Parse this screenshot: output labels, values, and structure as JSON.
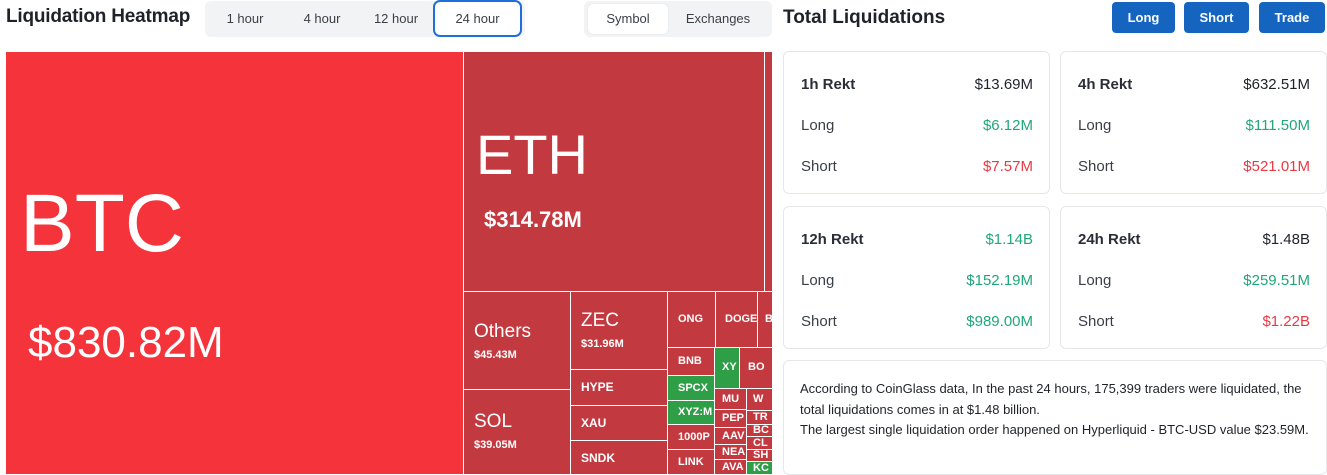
{
  "heatmap": {
    "title": "Liquidation Heatmap",
    "timeframes": [
      "1 hour",
      "4 hour",
      "12 hour",
      "24 hour"
    ],
    "active_timeframe": "24 hour",
    "views": [
      "Symbol",
      "Exchanges"
    ],
    "active_view": "Symbol",
    "cells": {
      "btc": {
        "symbol": "BTC",
        "value": "$830.82M"
      },
      "eth": {
        "symbol": "ETH",
        "value": "$314.78M"
      },
      "others": {
        "symbol": "Others",
        "value": "$45.43M"
      },
      "zec": {
        "symbol": "ZEC",
        "value": "$31.96M"
      },
      "sol": {
        "symbol": "SOL",
        "value": "$39.05M"
      },
      "hype": "HYPE",
      "xau": "XAU",
      "sndk": "SNDK",
      "ong": "ONG",
      "doge": "DOGE",
      "b": "B",
      "bnb": "BNB",
      "xy": "XY",
      "bo": "BO",
      "spcx": "SPCX",
      "mu": "MU",
      "w": "W",
      "xyzm": "XYZ:M",
      "pep": "PEP",
      "tr": "TR",
      "aav": "AAV",
      "bc": "BC",
      "p1000": "1000P",
      "nea": "NEA",
      "cl": "CL",
      "link": "LINK",
      "ava": "AVA",
      "sh": "SH",
      "kc": "KC"
    }
  },
  "total": {
    "title": "Total Liquidations",
    "buttons": [
      "Long",
      "Short",
      "Trade"
    ],
    "cards": [
      {
        "label": "1h Rekt",
        "total": "$13.69M",
        "long_label": "Long",
        "long": "$6.12M",
        "short_label": "Short",
        "short": "$7.57M",
        "short_color": "red"
      },
      {
        "label": "4h Rekt",
        "total": "$632.51M",
        "long_label": "Long",
        "long": "$111.50M",
        "short_label": "Short",
        "short": "$521.01M",
        "short_color": "red"
      },
      {
        "label": "12h Rekt",
        "total": "$1.14B",
        "long_label": "Long",
        "long": "$152.19M",
        "short_label": "Short",
        "short": "$989.00M",
        "short_color": "green"
      },
      {
        "label": "24h Rekt",
        "total": "$1.48B",
        "long_label": "Long",
        "long": "$259.51M",
        "short_label": "Short",
        "short": "$1.22B",
        "short_color": "red"
      }
    ],
    "summary_line1": "According to CoinGlass data, In the past 24 hours, 175,399 traders were liquidated, the total liquidations comes in at $1.48 billion.",
    "summary_line2": "The largest single liquidation order happened on Hyperliquid - BTC-USD value $23.59M."
  },
  "colors": {
    "accent": "#1565c0",
    "active_border": "#1e6fd9",
    "heat_strong": "#f5333a",
    "heat_medium": "#c23a40",
    "heat_green": "#2e9e47",
    "long_green": "#20a77b",
    "short_red": "#ea3943"
  }
}
